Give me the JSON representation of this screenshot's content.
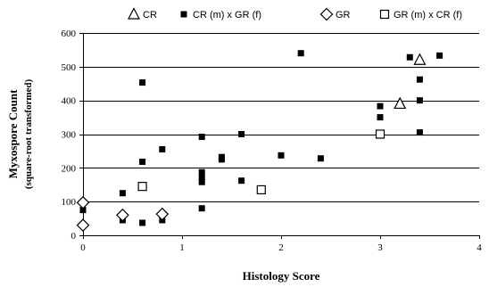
{
  "chart_data": {
    "type": "scatter",
    "title": "",
    "xlabel": "Histology Score",
    "ylabel": "Myxospore Count",
    "ylabel_sub": "(square-root transformed)",
    "xlim": [
      0,
      4
    ],
    "ylim": [
      0,
      600
    ],
    "xticks": [
      0,
      1,
      2,
      3,
      4
    ],
    "yticks": [
      0,
      100,
      200,
      300,
      400,
      500,
      600
    ],
    "grid": "horizontal",
    "legend_position": "top",
    "series": [
      {
        "name": "CR",
        "marker": "open-triangle",
        "color": "#000000",
        "points": [
          [
            3.2,
            390
          ],
          [
            3.4,
            520
          ]
        ]
      },
      {
        "name": "CR (m) x GR (f)",
        "marker": "filled-square",
        "color": "#000000",
        "points": [
          [
            0,
            75
          ],
          [
            0.4,
            125
          ],
          [
            0.4,
            45
          ],
          [
            0.6,
            453
          ],
          [
            0.6,
            218
          ],
          [
            0.6,
            37
          ],
          [
            0.8,
            255
          ],
          [
            0.8,
            45
          ],
          [
            1.2,
            292
          ],
          [
            1.2,
            187
          ],
          [
            1.2,
            172
          ],
          [
            1.2,
            158
          ],
          [
            1.2,
            80
          ],
          [
            1.4,
            232
          ],
          [
            1.4,
            225
          ],
          [
            1.6,
            300
          ],
          [
            1.6,
            162
          ],
          [
            2.0,
            237
          ],
          [
            2.2,
            540
          ],
          [
            2.4,
            228
          ],
          [
            3.0,
            383
          ],
          [
            3.0,
            350
          ],
          [
            3.3,
            528
          ],
          [
            3.4,
            462
          ],
          [
            3.4,
            400
          ],
          [
            3.4,
            305
          ],
          [
            3.6,
            533
          ]
        ]
      },
      {
        "name": "GR",
        "marker": "open-diamond",
        "color": "#000000",
        "points": [
          [
            0,
            97
          ],
          [
            0,
            30
          ],
          [
            0.4,
            60
          ],
          [
            0.8,
            63
          ]
        ]
      },
      {
        "name": "GR (m) x CR (f)",
        "marker": "open-square",
        "color": "#000000",
        "points": [
          [
            0.6,
            145
          ],
          [
            1.8,
            135
          ],
          [
            3.0,
            300
          ]
        ]
      }
    ]
  }
}
